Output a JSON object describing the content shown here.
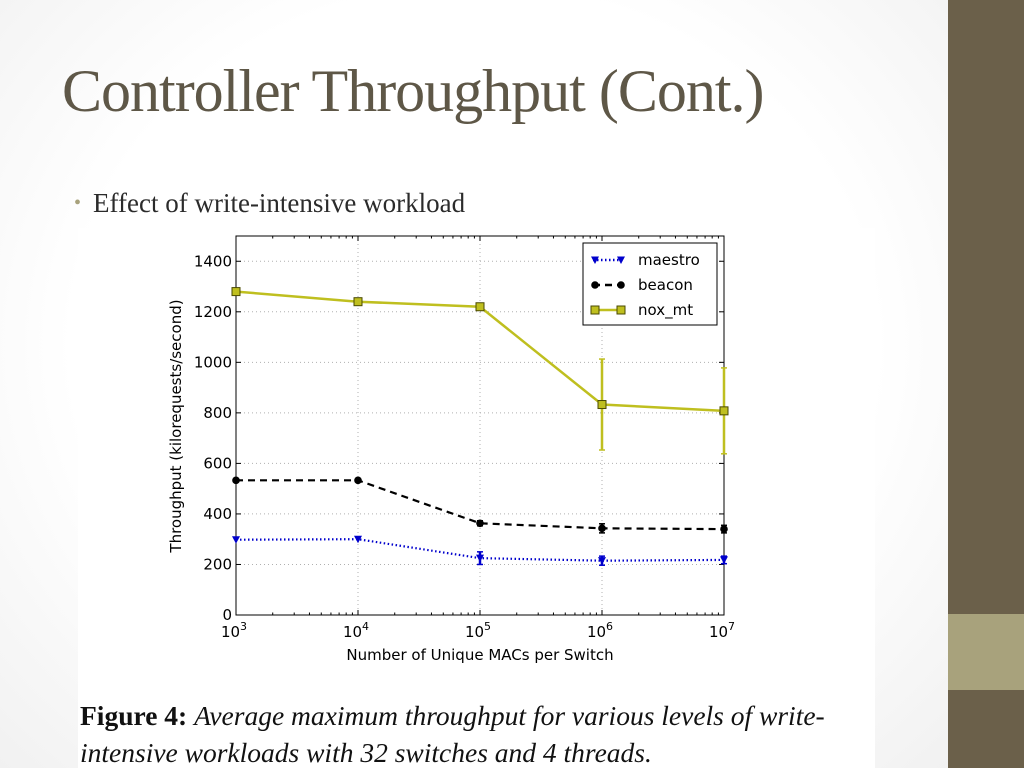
{
  "slide": {
    "title": "Controller Throughput (Cont.)",
    "bullet": "Effect of write-intensive workload",
    "bullet_marker": "•",
    "colors": {
      "title": "#5e5747",
      "side_bar": "#6b604a",
      "side_accent": "#a8a27c"
    }
  },
  "figure": {
    "caption_label": "Figure 4:",
    "caption_text": "Average maximum throughput for various levels of write-intensive workloads with 32 switches and 4 threads."
  },
  "chart_data": {
    "type": "line",
    "xlabel": "Number of Unique MACs per Switch",
    "ylabel": "Throughput (kilorequests/second)",
    "x_scale": "log",
    "x": [
      1000,
      10000,
      100000,
      1000000,
      10000000
    ],
    "x_tick_base": "10",
    "x_tick_exponents": [
      "3",
      "4",
      "5",
      "6",
      "7"
    ],
    "ylim": [
      0,
      1500
    ],
    "y_ticks": [
      0,
      200,
      400,
      600,
      800,
      1000,
      1200,
      1400
    ],
    "grid": true,
    "legend_position": "top-right",
    "series": [
      {
        "name": "maestro",
        "color": "#0000cc",
        "style": "dotted",
        "marker": "triangle-down",
        "values": [
          298,
          300,
          225,
          215,
          218
        ],
        "errors": [
          5,
          5,
          25,
          18,
          15
        ]
      },
      {
        "name": "beacon",
        "color": "#000000",
        "style": "dashed",
        "marker": "circle",
        "values": [
          533,
          533,
          363,
          343,
          340
        ],
        "errors": [
          5,
          5,
          10,
          18,
          15
        ]
      },
      {
        "name": "nox_mt",
        "color": "#bfbf1f",
        "style": "solid",
        "marker": "square",
        "values": [
          1280,
          1240,
          1220,
          833,
          808
        ],
        "errors": [
          5,
          5,
          5,
          180,
          170
        ]
      }
    ]
  }
}
